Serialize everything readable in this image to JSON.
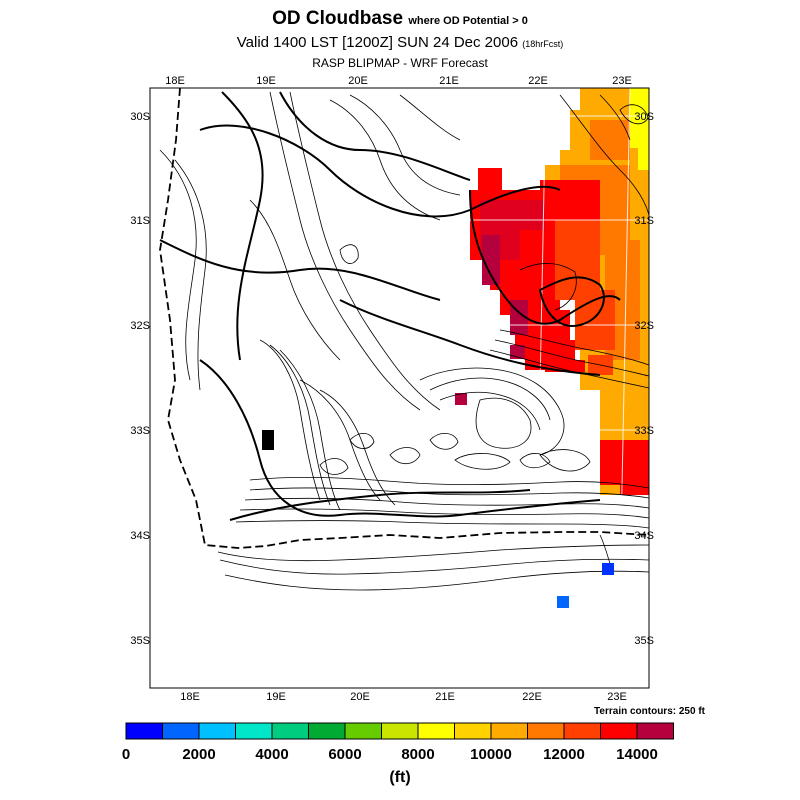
{
  "title": {
    "main": "OD Cloudbase",
    "main_suffix": "where OD Potential > 0",
    "valid": "Valid 1400 LST [1200Z] SUN 24 Dec 2006",
    "valid_suffix": "(18hrFcst)",
    "source": "RASP BLIPMAP - WRF Forecast"
  },
  "axes": {
    "lon_top": [
      "18E",
      "19E",
      "20E",
      "21E",
      "22E",
      "23E"
    ],
    "lon_bottom": [
      "18E",
      "19E",
      "20E",
      "21E",
      "22E",
      "23E"
    ],
    "lat_left": [
      "30S",
      "31S",
      "32S",
      "33S",
      "34S",
      "35S"
    ],
    "lat_right": [
      "30S",
      "31S",
      "32S",
      "33S",
      "34S",
      "35S"
    ]
  },
  "terrain_note": "Terrain contours: 250 ft",
  "colorbar": {
    "units": "(ft)",
    "labels": [
      "0",
      "2000",
      "4000",
      "6000",
      "8000",
      "10000",
      "12000",
      "14000"
    ],
    "colors": [
      "#0000ff",
      "#0066ff",
      "#00c0ff",
      "#00e6c8",
      "#00cc80",
      "#00aa33",
      "#66cc00",
      "#c8e600",
      "#ffff00",
      "#ffd200",
      "#ffaa00",
      "#ff7800",
      "#ff4000",
      "#ff0000",
      "#b4003c"
    ]
  },
  "field_colors": {
    "yellow": "#ffff00",
    "orange": "#ffaa00",
    "dark_orange": "#ff7800",
    "red_orange": "#ff4000",
    "red": "#ff0000",
    "crimson": "#e0001e",
    "maroon": "#b4003c",
    "blue": "#0033ff",
    "light_blue": "#0066ff"
  }
}
